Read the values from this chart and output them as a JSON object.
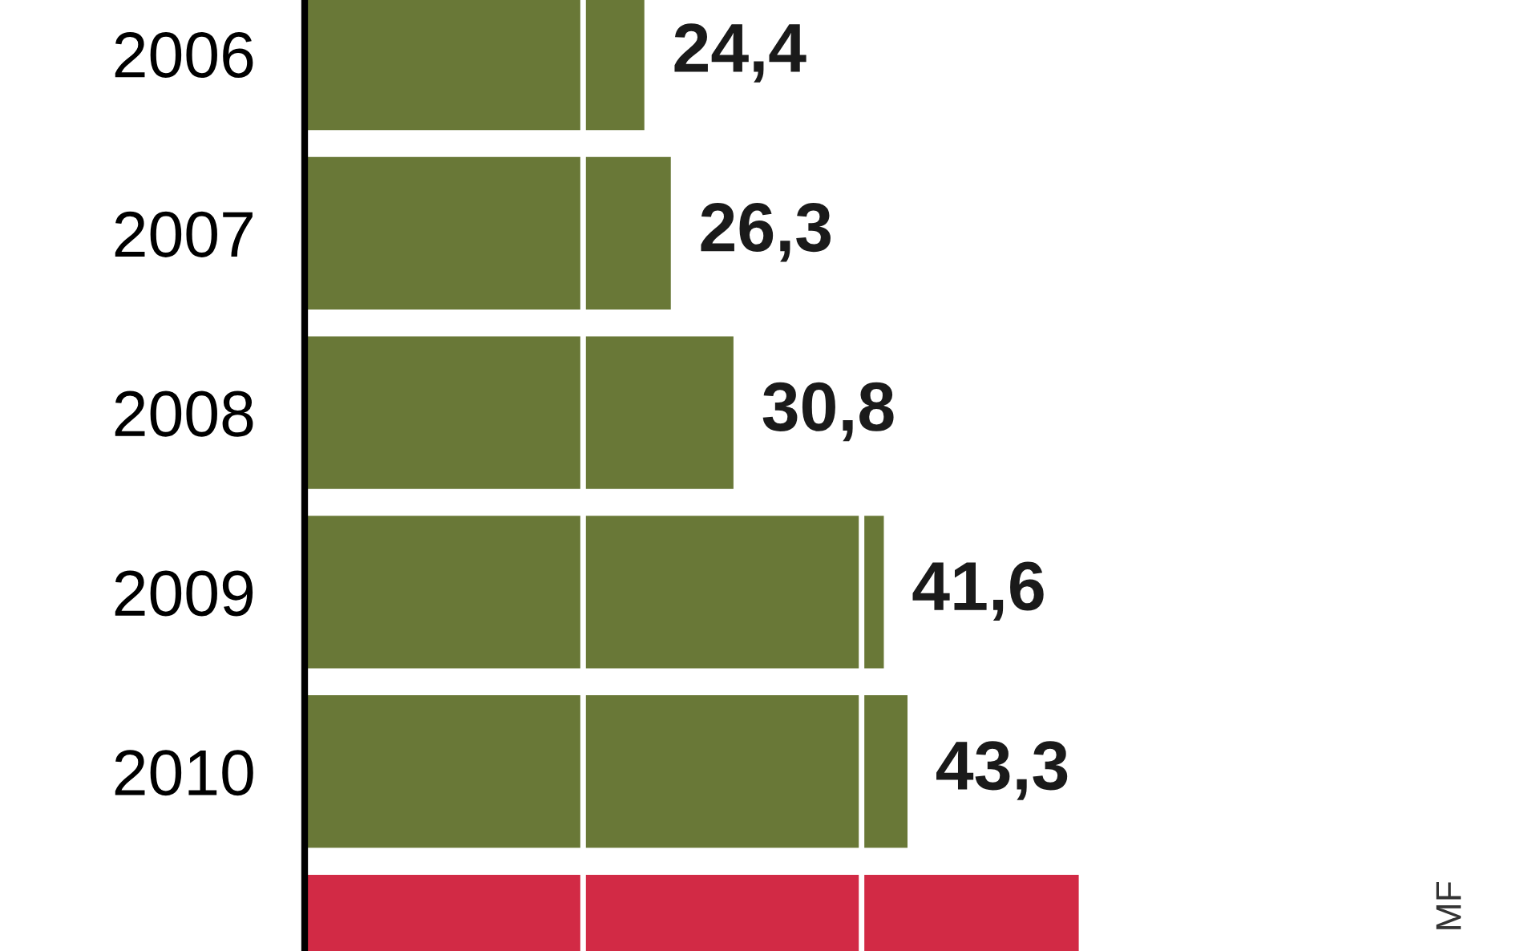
{
  "chart_data": {
    "type": "bar",
    "orientation": "horizontal",
    "categories": [
      "2006",
      "2007",
      "2008",
      "2009",
      "2010",
      null
    ],
    "values": [
      24.4,
      26.3,
      30.8,
      41.6,
      43.3,
      55.6
    ],
    "colors": [
      "#697837",
      "#697837",
      "#697837",
      "#697837",
      "#697837",
      "#d22a45"
    ],
    "value_labels": [
      "24,4",
      "26,3",
      "30,8",
      "41,6",
      "43,3",
      null
    ],
    "ref_lines": [
      {
        "axis": "x",
        "value": 20,
        "color": "#ffffff"
      },
      {
        "axis": "x",
        "value": 40,
        "color": "#ffffff"
      }
    ],
    "tick_labels": "y",
    "annotations": [
      "MF"
    ]
  }
}
